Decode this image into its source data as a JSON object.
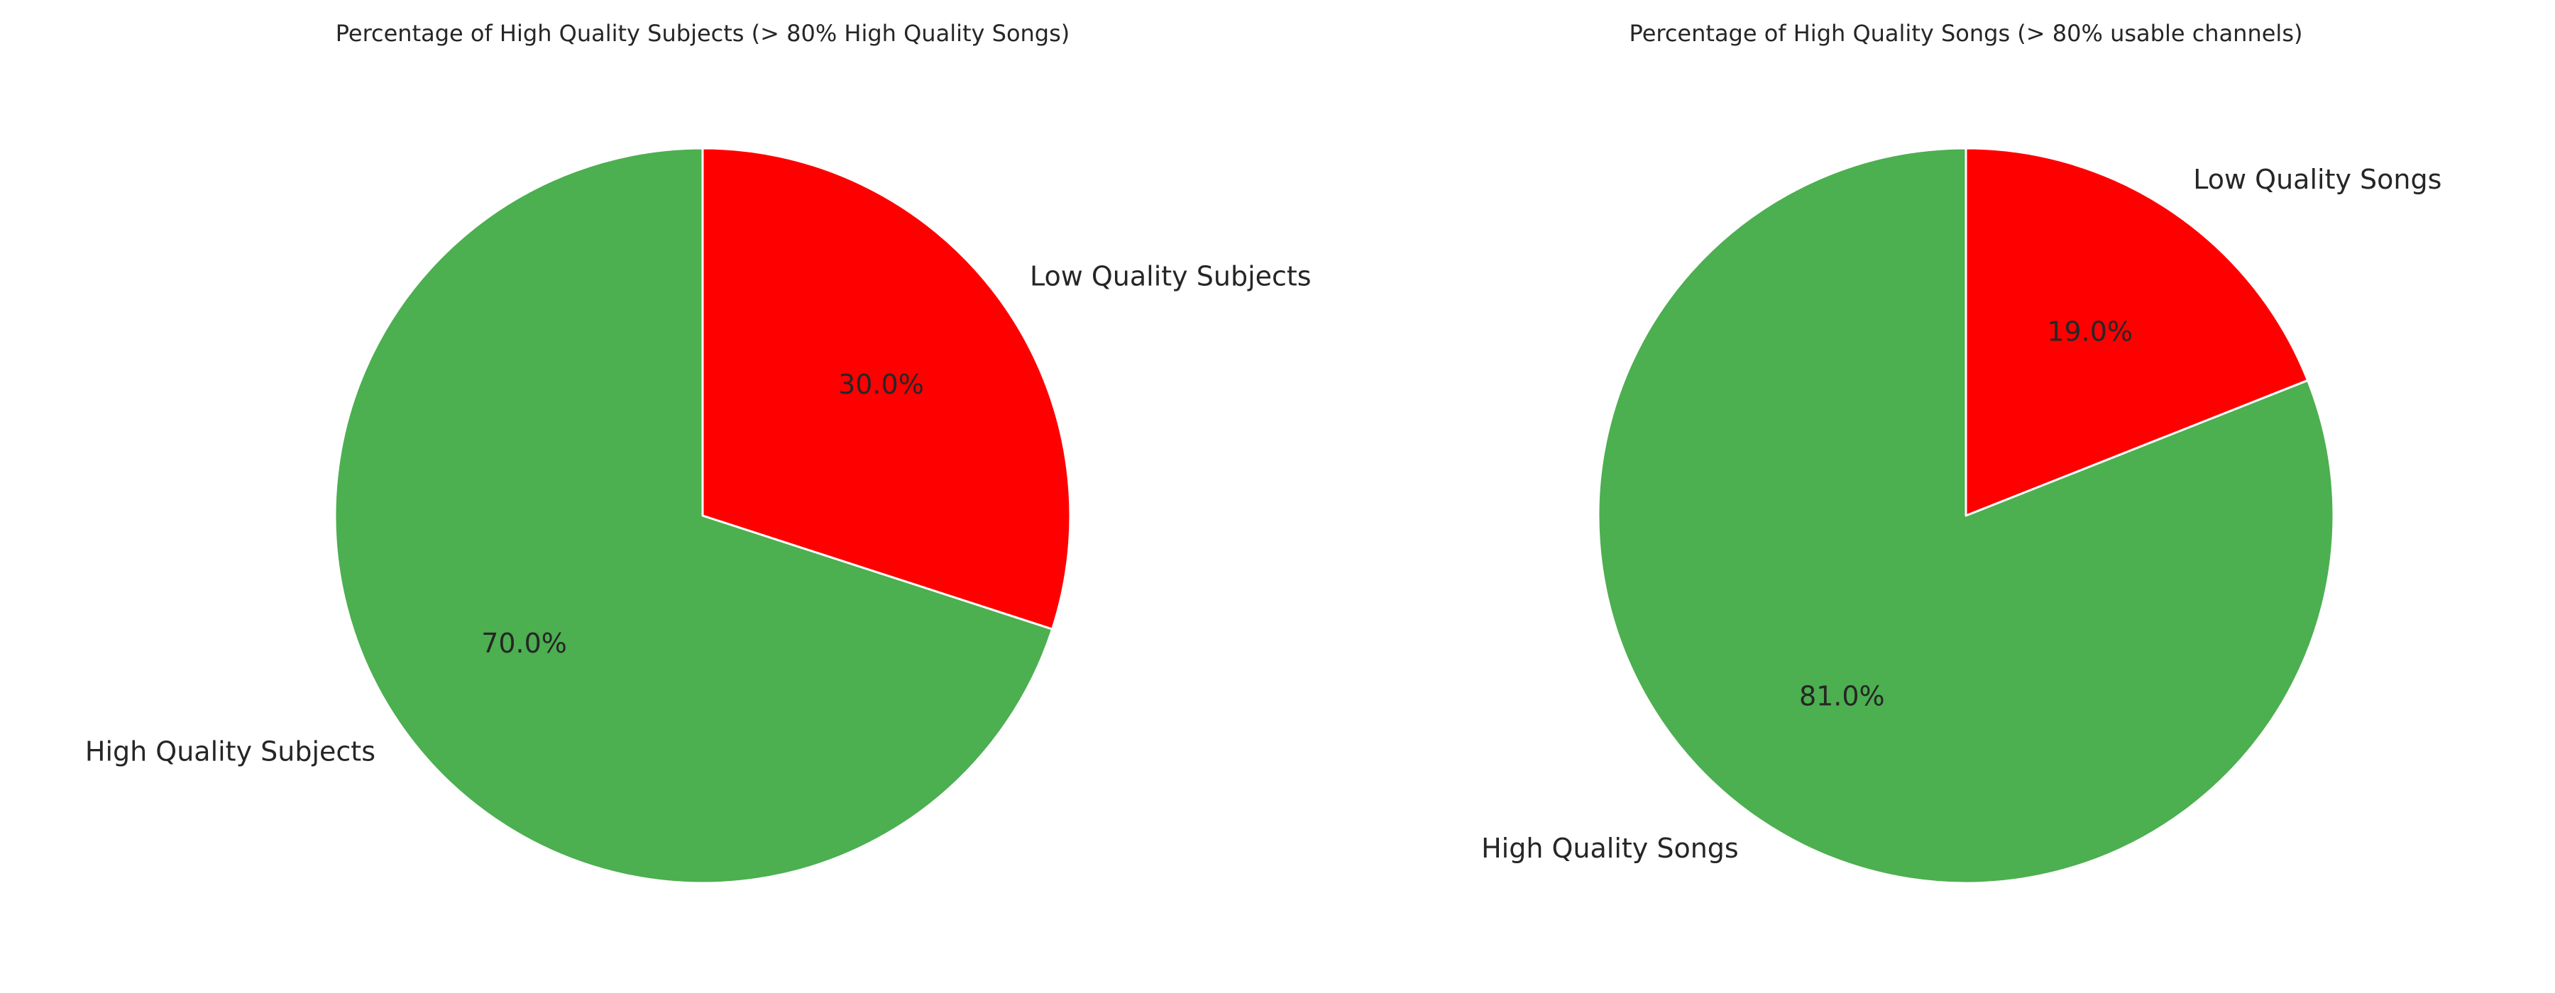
{
  "chart_data": [
    {
      "type": "pie",
      "title": "Percentage of High Quality Subjects (> 80% High Quality Songs)",
      "start_angle_deg": 90,
      "direction": "clockwise",
      "slices": [
        {
          "label": "Low Quality Subjects",
          "value": 30.0,
          "pct_text": "30.0%",
          "color": "#ff0000"
        },
        {
          "label": "High Quality Subjects",
          "value": 70.0,
          "pct_text": "70.0%",
          "color": "#4caf50"
        }
      ]
    },
    {
      "type": "pie",
      "title": "Percentage of High Quality Songs (> 80% usable channels)",
      "start_angle_deg": 90,
      "direction": "clockwise",
      "slices": [
        {
          "label": "Low Quality Songs",
          "value": 19.0,
          "pct_text": "19.0%",
          "color": "#ff0000"
        },
        {
          "label": "High Quality Songs",
          "value": 81.0,
          "pct_text": "81.0%",
          "color": "#4caf50"
        }
      ]
    }
  ]
}
